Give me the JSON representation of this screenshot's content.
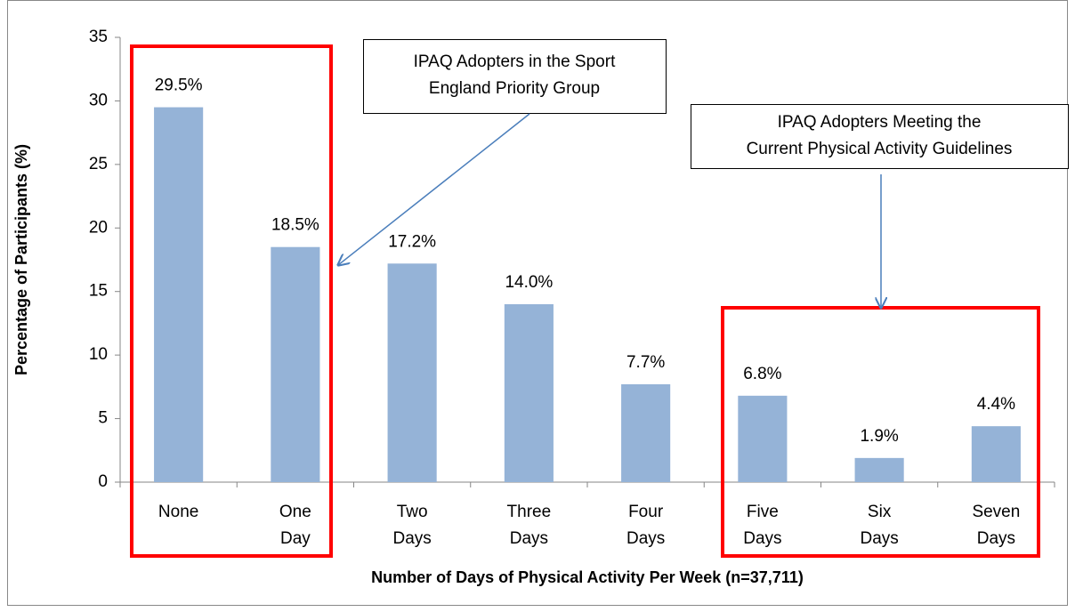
{
  "chart_data": {
    "type": "bar",
    "categories": [
      "None",
      "One Day",
      "Two Days",
      "Three Days",
      "Four Days",
      "Five Days",
      "Six Days",
      "Seven Days"
    ],
    "values": [
      29.5,
      18.5,
      17.2,
      14.0,
      7.7,
      6.8,
      1.9,
      4.4
    ],
    "value_labels": [
      "29.5%",
      "18.5%",
      "17.2%",
      "14.0%",
      "7.7%",
      "6.8%",
      "1.9%",
      "4.4%"
    ],
    "color": "#95b3d7",
    "ylim": [
      0,
      35
    ],
    "yticks": [
      0,
      5,
      10,
      15,
      20,
      25,
      30,
      35
    ],
    "y_label": "Percentage of Participants (%)",
    "x_label": "Number of Days of Physical Activity Per Week (n=37,711)",
    "annotations": [
      {
        "lines": [
          "IPAQ Adopters in the Sport",
          "England Priority Group"
        ]
      },
      {
        "lines": [
          "IPAQ Adopters Meeting the",
          "Current Physical Activity Guidelines"
        ]
      }
    ]
  }
}
